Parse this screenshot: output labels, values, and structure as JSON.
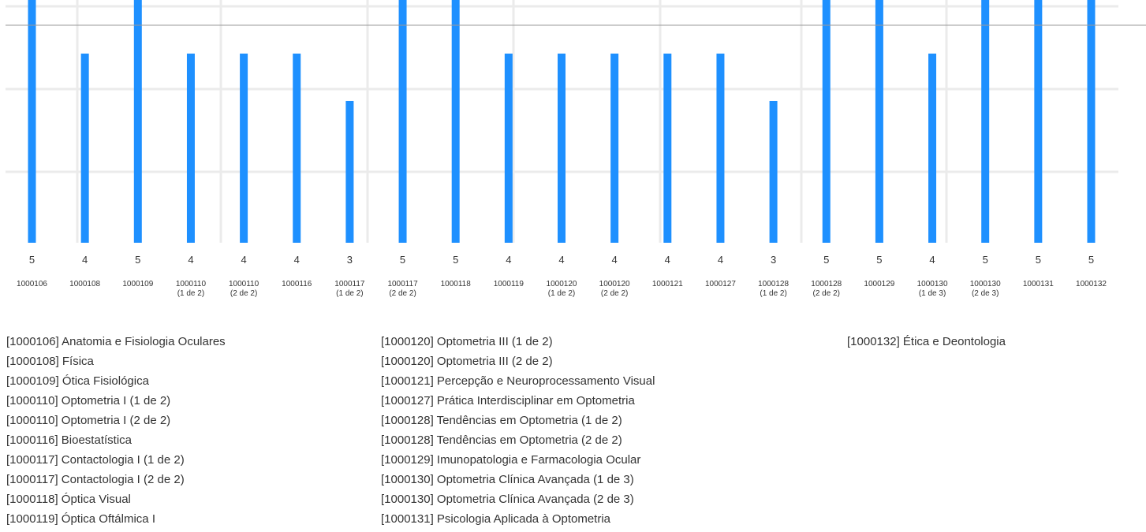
{
  "colors": {
    "bar": "#1e90ff",
    "grid": "#ebebeb",
    "reference_line": "#999999",
    "text": "#333333"
  },
  "chart_data": {
    "type": "bar",
    "categories": [
      {
        "code": "1000106",
        "part": ""
      },
      {
        "code": "1000108",
        "part": ""
      },
      {
        "code": "1000109",
        "part": ""
      },
      {
        "code": "1000110",
        "part": "(1 de 2)"
      },
      {
        "code": "1000110",
        "part": "(2 de 2)"
      },
      {
        "code": "1000116",
        "part": ""
      },
      {
        "code": "1000117",
        "part": "(1 de 2)"
      },
      {
        "code": "1000117",
        "part": "(2 de 2)"
      },
      {
        "code": "1000118",
        "part": ""
      },
      {
        "code": "1000119",
        "part": ""
      },
      {
        "code": "1000120",
        "part": "(1 de 2)"
      },
      {
        "code": "1000120",
        "part": "(2 de 2)"
      },
      {
        "code": "1000121",
        "part": ""
      },
      {
        "code": "1000127",
        "part": ""
      },
      {
        "code": "1000128",
        "part": "(1 de 2)"
      },
      {
        "code": "1000128",
        "part": "(2 de 2)"
      },
      {
        "code": "1000129",
        "part": ""
      },
      {
        "code": "1000130",
        "part": "(1 de 3)"
      },
      {
        "code": "1000130",
        "part": "(2 de 3)"
      },
      {
        "code": "1000131",
        "part": ""
      },
      {
        "code": "1000132",
        "part": ""
      }
    ],
    "values": [
      5,
      4,
      5,
      4,
      4,
      4,
      3,
      5,
      5,
      4,
      4,
      4,
      4,
      4,
      3,
      5,
      5,
      4,
      5,
      5,
      5
    ],
    "ylim": [
      0,
      5
    ],
    "reference_line": 4.6,
    "grid": true,
    "title": "",
    "xlabel": "",
    "ylabel": ""
  },
  "legend": {
    "columns": [
      [
        "[1000106] Anatomia e Fisiologia Oculares",
        "[1000108] Física",
        "[1000109] Ótica Fisiológica",
        "[1000110] Optometria I (1 de 2)",
        "[1000110] Optometria I (2 de 2)",
        "[1000116] Bioestatística",
        "[1000117] Contactologia I (1 de 2)",
        "[1000117] Contactologia I (2 de 2)",
        "[1000118] Óptica Visual",
        "[1000119] Óptica Oftálmica I"
      ],
      [
        "[1000120] Optometria III (1 de 2)",
        "[1000120] Optometria III (2 de 2)",
        "[1000121] Percepção e Neuroprocessamento Visual",
        "[1000127] Prática Interdisciplinar em Optometria",
        "[1000128] Tendências em Optometria (1 de 2)",
        "[1000128] Tendências em Optometria (2 de 2)",
        "[1000129] Imunopatologia e Farmacologia Ocular",
        "[1000130] Optometria Clínica Avançada (1 de 3)",
        "[1000130] Optometria Clínica Avançada (2 de 3)",
        "[1000131] Psicologia Aplicada à Optometria"
      ],
      [
        "[1000132] Ética e Deontologia"
      ]
    ]
  }
}
